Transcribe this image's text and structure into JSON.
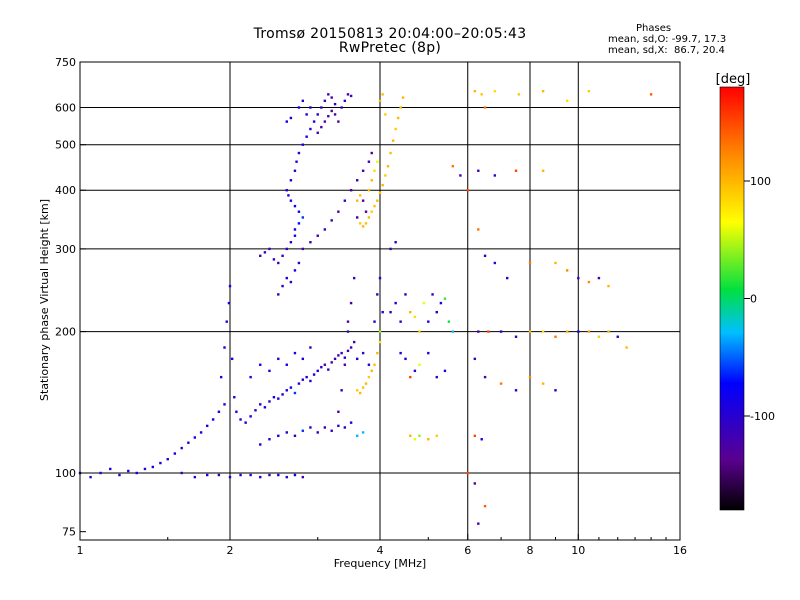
{
  "title": "Tromsø 20150813 20:04:00–20:05:43",
  "subtitle": "RwPretec (8p)",
  "stats": {
    "heading": "Phases",
    "o_mode": "mean, sd,O: -99.7, 17.3",
    "x_mode": "mean, sd,X:  86.7, 20.4"
  },
  "chart_data": {
    "type": "scatter",
    "xlabel": "Frequency [MHz]",
    "ylabel": "Stationary phase Virtual Height [km]",
    "x_scale": "log",
    "y_scale": "log",
    "xlim": [
      1,
      16
    ],
    "ylim": [
      72,
      750
    ],
    "x_ticks": [
      {
        "value": 1,
        "label": "1"
      },
      {
        "value": 2,
        "label": "2"
      },
      {
        "value": 4,
        "label": "4"
      },
      {
        "value": 6,
        "label": "6"
      },
      {
        "value": 8,
        "label": "8"
      },
      {
        "value": 10,
        "label": "10"
      },
      {
        "value": 16,
        "label": "16"
      }
    ],
    "x_grid": [
      2,
      4,
      6,
      8,
      10
    ],
    "y_ticks": [
      {
        "value": 75,
        "label": "75"
      },
      {
        "value": 100,
        "label": "100"
      },
      {
        "value": 200,
        "label": "200"
      },
      {
        "value": 300,
        "label": "300"
      },
      {
        "value": 400,
        "label": "400"
      },
      {
        "value": 500,
        "label": "500"
      },
      {
        "value": 600,
        "label": "600"
      },
      {
        "value": 750,
        "label": "750"
      }
    ],
    "y_grid": [
      100,
      200,
      300,
      400,
      500,
      600
    ],
    "colorbar": {
      "label": "[deg]",
      "range": [
        -180,
        180
      ],
      "ticks": [
        {
          "value": 100,
          "label": "100"
        },
        {
          "value": 0,
          "label": "0"
        },
        {
          "value": -100,
          "label": "-100"
        }
      ]
    },
    "points": [
      [
        1.0,
        100,
        -80
      ],
      [
        1.05,
        98,
        -95
      ],
      [
        1.1,
        100,
        -100
      ],
      [
        1.15,
        102,
        -90
      ],
      [
        1.2,
        99,
        -100
      ],
      [
        1.25,
        101,
        -95
      ],
      [
        1.3,
        100,
        -85
      ],
      [
        1.35,
        102,
        -100
      ],
      [
        1.4,
        103,
        -90
      ],
      [
        1.45,
        105,
        -95
      ],
      [
        1.5,
        107,
        -100
      ],
      [
        1.55,
        110,
        -85
      ],
      [
        1.6,
        113,
        -95
      ],
      [
        1.65,
        116,
        -100
      ],
      [
        1.7,
        119,
        -90
      ],
      [
        1.75,
        122,
        -95
      ],
      [
        1.8,
        126,
        -100
      ],
      [
        1.85,
        130,
        -85
      ],
      [
        1.9,
        135,
        -95
      ],
      [
        1.95,
        140,
        -100
      ],
      [
        1.6,
        100,
        -110
      ],
      [
        1.7,
        98,
        -100
      ],
      [
        1.8,
        99,
        -95
      ],
      [
        1.9,
        99,
        -110
      ],
      [
        2.0,
        98,
        -100
      ],
      [
        2.1,
        99,
        -90
      ],
      [
        2.2,
        99,
        -100
      ],
      [
        2.3,
        98,
        -95
      ],
      [
        2.4,
        99,
        -110
      ],
      [
        2.5,
        99,
        -90
      ],
      [
        2.6,
        98,
        -100
      ],
      [
        2.7,
        99,
        -95
      ],
      [
        2.8,
        98,
        -120
      ],
      [
        1.92,
        160,
        -100
      ],
      [
        1.95,
        185,
        -90
      ],
      [
        1.97,
        210,
        -100
      ],
      [
        1.99,
        230,
        -95
      ],
      [
        2.0,
        250,
        -90
      ],
      [
        2.02,
        175,
        -85
      ],
      [
        2.04,
        145,
        -100
      ],
      [
        2.06,
        135,
        -95
      ],
      [
        2.1,
        130,
        -100
      ],
      [
        2.15,
        128,
        -90
      ],
      [
        2.2,
        132,
        -85
      ],
      [
        2.25,
        136,
        -100
      ],
      [
        2.3,
        140,
        -95
      ],
      [
        2.35,
        138,
        -90
      ],
      [
        2.4,
        142,
        -100
      ],
      [
        2.45,
        145,
        -85
      ],
      [
        2.5,
        144,
        -95
      ],
      [
        2.55,
        147,
        -100
      ],
      [
        2.6,
        150,
        -90
      ],
      [
        2.65,
        152,
        -85
      ],
      [
        2.7,
        148,
        -60
      ],
      [
        2.75,
        155,
        -100
      ],
      [
        2.8,
        158,
        -95
      ],
      [
        2.85,
        160,
        -90
      ],
      [
        2.9,
        157,
        -100
      ],
      [
        2.95,
        162,
        -85
      ],
      [
        3.0,
        165,
        -95
      ],
      [
        3.05,
        168,
        -100
      ],
      [
        3.1,
        170,
        -120
      ],
      [
        3.15,
        166,
        -110
      ],
      [
        3.2,
        172,
        -120
      ],
      [
        3.25,
        175,
        -110
      ],
      [
        3.3,
        178,
        -120
      ],
      [
        3.35,
        180,
        -110
      ],
      [
        3.4,
        176,
        -100
      ],
      [
        3.45,
        182,
        -120
      ],
      [
        3.5,
        185,
        -110
      ],
      [
        2.2,
        160,
        -100
      ],
      [
        2.3,
        170,
        -90
      ],
      [
        2.4,
        165,
        -95
      ],
      [
        2.5,
        175,
        -100
      ],
      [
        2.6,
        170,
        -85
      ],
      [
        2.7,
        180,
        -95
      ],
      [
        2.8,
        175,
        -90
      ],
      [
        2.9,
        185,
        -100
      ],
      [
        2.3,
        115,
        -95
      ],
      [
        2.4,
        118,
        -100
      ],
      [
        2.5,
        120,
        -90
      ],
      [
        2.6,
        122,
        -95
      ],
      [
        2.7,
        120,
        -100
      ],
      [
        2.8,
        123,
        -60
      ],
      [
        2.9,
        125,
        -100
      ],
      [
        3.0,
        122,
        -95
      ],
      [
        3.1,
        125,
        -110
      ],
      [
        3.2,
        123,
        -120
      ],
      [
        3.3,
        126,
        -110
      ],
      [
        3.4,
        125,
        -100
      ],
      [
        3.5,
        128,
        -95
      ],
      [
        3.6,
        120,
        -30
      ],
      [
        3.7,
        122,
        -30
      ],
      [
        3.3,
        135,
        -120
      ],
      [
        3.35,
        150,
        -110
      ],
      [
        3.4,
        170,
        -120
      ],
      [
        3.45,
        200,
        -115
      ],
      [
        3.5,
        230,
        -120
      ],
      [
        3.55,
        260,
        -110
      ],
      [
        3.45,
        210,
        -130
      ],
      [
        3.55,
        190,
        -120
      ],
      [
        3.6,
        150,
        90
      ],
      [
        3.65,
        148,
        100
      ],
      [
        3.7,
        152,
        95
      ],
      [
        3.75,
        155,
        100
      ],
      [
        3.8,
        160,
        90
      ],
      [
        3.85,
        165,
        100
      ],
      [
        3.9,
        170,
        95
      ],
      [
        3.95,
        180,
        100
      ],
      [
        4.0,
        190,
        80
      ],
      [
        4.0,
        200,
        40
      ],
      [
        3.8,
        170,
        -100
      ],
      [
        3.7,
        180,
        -110
      ],
      [
        3.6,
        175,
        -90
      ],
      [
        3.9,
        210,
        -100
      ],
      [
        3.95,
        240,
        -110
      ],
      [
        4.0,
        260,
        -100
      ],
      [
        4.05,
        220,
        -90
      ],
      [
        2.5,
        240,
        -100
      ],
      [
        2.55,
        250,
        -95
      ],
      [
        2.6,
        260,
        -90
      ],
      [
        2.65,
        255,
        -100
      ],
      [
        2.7,
        270,
        -85
      ],
      [
        2.75,
        280,
        -95
      ],
      [
        2.3,
        290,
        -120
      ],
      [
        2.35,
        295,
        -115
      ],
      [
        2.4,
        300,
        -120
      ],
      [
        2.45,
        285,
        -110
      ],
      [
        2.5,
        280,
        -120
      ],
      [
        2.55,
        290,
        -115
      ],
      [
        2.6,
        300,
        -110
      ],
      [
        2.65,
        310,
        -100
      ],
      [
        2.7,
        320,
        -90
      ],
      [
        2.7,
        330,
        -80
      ],
      [
        2.75,
        340,
        -70
      ],
      [
        2.8,
        350,
        -60
      ],
      [
        2.75,
        360,
        -70
      ],
      [
        2.7,
        370,
        -80
      ],
      [
        2.65,
        380,
        -90
      ],
      [
        2.62,
        390,
        -95
      ],
      [
        2.6,
        400,
        -85
      ],
      [
        2.65,
        420,
        -90
      ],
      [
        2.7,
        440,
        -100
      ],
      [
        2.72,
        460,
        -95
      ],
      [
        2.75,
        480,
        -100
      ],
      [
        2.8,
        500,
        -90
      ],
      [
        2.85,
        520,
        -95
      ],
      [
        2.9,
        540,
        -100
      ],
      [
        2.95,
        560,
        -90
      ],
      [
        3.0,
        580,
        -100
      ],
      [
        3.05,
        600,
        -110
      ],
      [
        3.1,
        620,
        -120
      ],
      [
        3.15,
        640,
        -115
      ],
      [
        3.2,
        630,
        -120
      ],
      [
        3.25,
        610,
        -110
      ],
      [
        3.0,
        530,
        -130
      ],
      [
        3.05,
        545,
        -125
      ],
      [
        3.1,
        560,
        -130
      ],
      [
        3.15,
        575,
        -125
      ],
      [
        3.2,
        590,
        -130
      ],
      [
        3.25,
        580,
        -125
      ],
      [
        3.3,
        560,
        -130
      ],
      [
        3.35,
        600,
        -120
      ],
      [
        3.4,
        620,
        -110
      ],
      [
        3.45,
        640,
        -115
      ],
      [
        3.5,
        635,
        -120
      ],
      [
        2.8,
        620,
        -100
      ],
      [
        2.75,
        600,
        -90
      ],
      [
        2.85,
        580,
        -95
      ],
      [
        2.9,
        600,
        -100
      ],
      [
        2.6,
        560,
        -80
      ],
      [
        2.65,
        570,
        -85
      ],
      [
        2.8,
        300,
        -120
      ],
      [
        2.9,
        310,
        -115
      ],
      [
        3.0,
        320,
        -120
      ],
      [
        3.1,
        330,
        -110
      ],
      [
        3.2,
        345,
        -115
      ],
      [
        3.3,
        360,
        -120
      ],
      [
        3.4,
        380,
        -110
      ],
      [
        3.5,
        400,
        -120
      ],
      [
        3.6,
        420,
        -110
      ],
      [
        3.7,
        440,
        -120
      ],
      [
        3.8,
        460,
        -115
      ],
      [
        3.85,
        480,
        -120
      ],
      [
        3.7,
        380,
        -130
      ],
      [
        3.75,
        360,
        -125
      ],
      [
        3.6,
        350,
        -120
      ],
      [
        3.65,
        340,
        90
      ],
      [
        3.7,
        335,
        100
      ],
      [
        3.75,
        340,
        95
      ],
      [
        3.8,
        350,
        100
      ],
      [
        3.85,
        360,
        90
      ],
      [
        3.9,
        370,
        95
      ],
      [
        3.95,
        380,
        100
      ],
      [
        4.0,
        395,
        95
      ],
      [
        4.05,
        410,
        100
      ],
      [
        4.1,
        430,
        90
      ],
      [
        4.15,
        450,
        100
      ],
      [
        4.2,
        480,
        95
      ],
      [
        4.25,
        510,
        100
      ],
      [
        4.3,
        540,
        90
      ],
      [
        4.35,
        570,
        100
      ],
      [
        4.4,
        600,
        95
      ],
      [
        4.45,
        630,
        100
      ],
      [
        3.8,
        400,
        95
      ],
      [
        3.85,
        420,
        100
      ],
      [
        3.9,
        440,
        80
      ],
      [
        3.95,
        460,
        60
      ],
      [
        3.6,
        380,
        100
      ],
      [
        3.65,
        390,
        95
      ],
      [
        4.0,
        620,
        100
      ],
      [
        4.05,
        640,
        95
      ],
      [
        4.1,
        580,
        90
      ],
      [
        4.2,
        300,
        -110
      ],
      [
        4.3,
        310,
        -100
      ],
      [
        4.2,
        220,
        -100
      ],
      [
        4.3,
        230,
        -90
      ],
      [
        4.4,
        210,
        -110
      ],
      [
        4.5,
        240,
        -100
      ],
      [
        4.6,
        220,
        100
      ],
      [
        4.7,
        215,
        80
      ],
      [
        4.8,
        200,
        90
      ],
      [
        4.9,
        230,
        60
      ],
      [
        5.0,
        210,
        -100
      ],
      [
        5.1,
        240,
        -110
      ],
      [
        5.2,
        220,
        -100
      ],
      [
        5.3,
        230,
        -90
      ],
      [
        5.4,
        235,
        20
      ],
      [
        5.5,
        210,
        10
      ],
      [
        5.6,
        200,
        -30
      ],
      [
        4.4,
        180,
        -100
      ],
      [
        4.5,
        175,
        -90
      ],
      [
        4.6,
        160,
        150
      ],
      [
        4.7,
        165,
        -100
      ],
      [
        4.8,
        170,
        60
      ],
      [
        5.0,
        180,
        -100
      ],
      [
        5.2,
        160,
        -110
      ],
      [
        5.4,
        165,
        -100
      ],
      [
        4.6,
        120,
        100
      ],
      [
        4.7,
        118,
        60
      ],
      [
        4.8,
        120,
        40
      ],
      [
        5.0,
        118,
        100
      ],
      [
        5.2,
        120,
        90
      ],
      [
        6.2,
        650,
        100
      ],
      [
        6.4,
        640,
        90
      ],
      [
        6.8,
        650,
        80
      ],
      [
        7.6,
        640,
        90
      ],
      [
        8.5,
        650,
        100
      ],
      [
        9.5,
        620,
        80
      ],
      [
        10.5,
        650,
        90
      ],
      [
        14.0,
        640,
        140
      ],
      [
        6.3,
        440,
        -120
      ],
      [
        6.8,
        430,
        -100
      ],
      [
        7.5,
        440,
        150
      ],
      [
        8.5,
        440,
        100
      ],
      [
        6.0,
        400,
        150
      ],
      [
        6.3,
        330,
        130
      ],
      [
        6.5,
        290,
        -100
      ],
      [
        6.8,
        280,
        -110
      ],
      [
        7.2,
        260,
        -100
      ],
      [
        8.0,
        280,
        130
      ],
      [
        9.0,
        280,
        100
      ],
      [
        9.5,
        270,
        120
      ],
      [
        10.0,
        260,
        -120
      ],
      [
        10.5,
        255,
        120
      ],
      [
        11.0,
        260,
        -120
      ],
      [
        11.5,
        250,
        100
      ],
      [
        6.3,
        200,
        -120
      ],
      [
        6.6,
        200,
        150
      ],
      [
        7.0,
        200,
        -100
      ],
      [
        7.5,
        195,
        -110
      ],
      [
        8.0,
        200,
        100
      ],
      [
        8.5,
        200,
        80
      ],
      [
        9.0,
        195,
        130
      ],
      [
        9.5,
        200,
        100
      ],
      [
        10.0,
        200,
        -100
      ],
      [
        10.5,
        200,
        110
      ],
      [
        11.0,
        195,
        90
      ],
      [
        11.5,
        200,
        100
      ],
      [
        12.0,
        195,
        -110
      ],
      [
        12.5,
        185,
        100
      ],
      [
        6.2,
        175,
        -110
      ],
      [
        6.5,
        160,
        -120
      ],
      [
        7.0,
        155,
        130
      ],
      [
        7.5,
        150,
        -100
      ],
      [
        8.0,
        160,
        120
      ],
      [
        8.5,
        155,
        100
      ],
      [
        9.0,
        150,
        -100
      ],
      [
        6.2,
        120,
        150
      ],
      [
        6.4,
        118,
        -100
      ],
      [
        6.0,
        100,
        150
      ],
      [
        6.2,
        95,
        -130
      ],
      [
        6.5,
        85,
        140
      ],
      [
        6.3,
        78,
        -120
      ],
      [
        5.6,
        450,
        130
      ],
      [
        5.8,
        430,
        -120
      ],
      [
        6.5,
        600,
        130
      ]
    ]
  }
}
